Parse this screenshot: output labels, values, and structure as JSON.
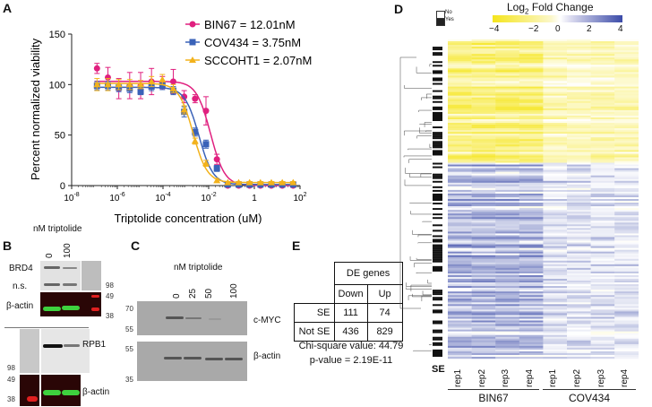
{
  "panels": {
    "a": "A",
    "b": "B",
    "c": "C",
    "d": "D",
    "e": "E"
  },
  "chart_data": {
    "type": "scatter",
    "xlabel": "Triptolide concentration (uM)",
    "ylabel": "Percent normalized viability",
    "xscale": "log",
    "xlim": [
      1e-08,
      100
    ],
    "ylim": [
      0,
      150
    ],
    "yticks": [
      "0",
      "50",
      "100",
      "150"
    ],
    "xticks": [
      {
        "base": "10",
        "exp": "-8"
      },
      {
        "base": "10",
        "exp": "-6"
      },
      {
        "base": "10",
        "exp": "-4"
      },
      {
        "base": "10",
        "exp": "-2"
      },
      {
        "base": "1",
        "exp": ""
      },
      {
        "base": "10",
        "exp": "2"
      }
    ],
    "x": [
      1.29e-07,
      3.87e-07,
      1.16e-06,
      3.48e-06,
      1.05e-05,
      3.14e-05,
      9.41e-05,
      0.000282,
      0.000847,
      0.00254,
      0.00762,
      0.0229,
      0.0686,
      0.206,
      0.617,
      1.85,
      5.56,
      16.7,
      50
    ],
    "series": [
      {
        "name": "BIN67 = 12.01nM",
        "ic50_nM": 12.01,
        "color": "#e0207f",
        "marker": "circle",
        "values": [
          116,
          107,
          96,
          99,
          99,
          103,
          102,
          103,
          88,
          86,
          74,
          26,
          0,
          0,
          0,
          0,
          0,
          0,
          0
        ],
        "err": [
          5,
          10,
          10,
          13,
          13,
          13,
          6,
          12,
          6,
          4,
          14,
          5,
          0,
          0,
          0,
          0,
          0,
          0,
          0
        ]
      },
      {
        "name": "COV434 = 3.75nM",
        "ic50_nM": 3.75,
        "color": "#3a62b8",
        "marker": "square",
        "values": [
          99,
          99,
          97,
          96,
          93,
          98,
          99,
          94,
          73,
          53,
          41,
          17,
          1,
          1,
          1,
          1,
          1,
          1,
          1
        ],
        "err": [
          4,
          4,
          4,
          4,
          3,
          4,
          4,
          4,
          5,
          4,
          4,
          3,
          1,
          1,
          1,
          1,
          1,
          1,
          1
        ]
      },
      {
        "name": "SCCOHT1 = 2.07nM",
        "ic50_nM": 2.07,
        "color": "#f2b21c",
        "marker": "triangle",
        "values": [
          100,
          100,
          100,
          100,
          100,
          103,
          105,
          96,
          75,
          44,
          22,
          5,
          3,
          3,
          3,
          3,
          3,
          3,
          3
        ],
        "err": [
          6,
          6,
          5,
          5,
          4,
          5,
          5,
          4,
          4,
          3,
          3,
          2,
          1,
          1,
          1,
          1,
          1,
          1,
          1
        ]
      }
    ],
    "legend": "top-right"
  },
  "b": {
    "title": "nM triptolide",
    "lanes": [
      "0",
      "100"
    ],
    "brd4": "BRD4",
    "ns": "n.s.",
    "actin": "β-actin",
    "rpb1": "RPB1",
    "mw98": "98",
    "mw49": "49",
    "mw38": "38"
  },
  "c": {
    "title": "nM triptolide",
    "lanes": [
      "0",
      "25",
      "50",
      "100"
    ],
    "myc": "c-MYC",
    "actin": "β-actin",
    "mw70": "70",
    "mw55": "55",
    "mw35": "35"
  },
  "d": {
    "legend_title": "Log",
    "legend_sub": "2",
    "legend_title2": " Fold Change",
    "ticks": [
      "−4",
      "−2",
      "0",
      "2",
      "4"
    ],
    "no": "No",
    "yes": "Yes",
    "se": "SE",
    "reps": [
      "rep1",
      "rep2",
      "rep3",
      "rep4",
      "rep1",
      "rep2",
      "rep3",
      "rep4"
    ],
    "groups": [
      "BIN67",
      "COV434"
    ],
    "low_color": "#f5e51c",
    "high_color": "#3b4ba8"
  },
  "e": {
    "header": "DE genes",
    "cols": [
      "Down",
      "Up"
    ],
    "rows": [
      {
        "label": "SE",
        "down": "111",
        "up": "74"
      },
      {
        "label": "Not SE",
        "down": "436",
        "up": "829"
      }
    ],
    "chi": "Chi-square value: 44.79",
    "p": "p-value = 2.19E-11"
  }
}
